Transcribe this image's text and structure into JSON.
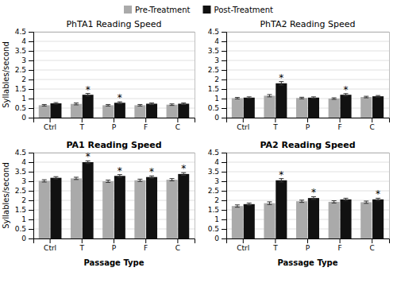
{
  "chart_data": [
    {
      "type": "bar",
      "title": "PhTA1 Reading Speed",
      "categories": [
        "Ctrl",
        "T",
        "P",
        "F",
        "C"
      ],
      "series": [
        {
          "name": "Pre-Treatment",
          "color": "#aaaaaa",
          "values": [
            0.65,
            0.72,
            0.65,
            0.65,
            0.68
          ],
          "errors": [
            0.04,
            0.05,
            0.04,
            0.04,
            0.04
          ]
        },
        {
          "name": "Post-Treatment",
          "color": "#111111",
          "values": [
            0.75,
            1.2,
            0.78,
            0.73,
            0.73
          ],
          "errors": [
            0.04,
            0.07,
            0.05,
            0.04,
            0.04
          ]
        }
      ],
      "annotations": [
        {
          "text": "*",
          "category": "T",
          "series": "Post-Treatment"
        },
        {
          "text": "*",
          "category": "P",
          "series": "Post-Treatment"
        }
      ],
      "ylabel": "Syllables/second",
      "ylim": [
        0,
        4.5
      ],
      "yticks": [
        0,
        0.5,
        1,
        1.5,
        2,
        2.5,
        3,
        3.5,
        4,
        4.5
      ],
      "grid": true,
      "legend": "top"
    },
    {
      "type": "bar",
      "title": "PhTA2 Reading Speed",
      "categories": [
        "Ctrl",
        "T",
        "P",
        "F",
        "C"
      ],
      "series": [
        {
          "name": "Pre-Treatment",
          "color": "#aaaaaa",
          "values": [
            1.02,
            1.15,
            1.03,
            1.0,
            1.08
          ],
          "errors": [
            0.04,
            0.06,
            0.04,
            0.04,
            0.04
          ]
        },
        {
          "name": "Post-Treatment",
          "color": "#111111",
          "values": [
            1.05,
            1.8,
            1.05,
            1.2,
            1.12
          ],
          "errors": [
            0.04,
            0.09,
            0.04,
            0.06,
            0.04
          ]
        }
      ],
      "annotations": [
        {
          "text": "*",
          "category": "T",
          "series": "Post-Treatment"
        },
        {
          "text": "*",
          "category": "F",
          "series": "Post-Treatment"
        }
      ],
      "ylim": [
        0,
        4.5
      ],
      "yticks": [
        0,
        0.5,
        1,
        1.5,
        2,
        2.5,
        3,
        3.5,
        4,
        4.5
      ],
      "grid": true
    },
    {
      "type": "bar",
      "title": "PA1 Reading Speed",
      "categories": [
        "Ctrl",
        "T",
        "P",
        "F",
        "C"
      ],
      "series": [
        {
          "name": "Pre-Treatment",
          "color": "#aaaaaa",
          "values": [
            3.02,
            3.15,
            3.0,
            3.05,
            3.08
          ],
          "errors": [
            0.06,
            0.06,
            0.06,
            0.06,
            0.06
          ]
        },
        {
          "name": "Post-Treatment",
          "color": "#111111",
          "values": [
            3.18,
            4.0,
            3.28,
            3.22,
            3.38
          ],
          "errors": [
            0.06,
            0.07,
            0.07,
            0.06,
            0.07
          ]
        }
      ],
      "annotations": [
        {
          "text": "*",
          "category": "T",
          "series": "Post-Treatment"
        },
        {
          "text": "*",
          "category": "P",
          "series": "Post-Treatment"
        },
        {
          "text": "*",
          "category": "F",
          "series": "Post-Treatment"
        },
        {
          "text": "*",
          "category": "C",
          "series": "Post-Treatment"
        }
      ],
      "xlabel": "Passage Type",
      "ylabel": "Syllables/second",
      "ylim": [
        0,
        4.5
      ],
      "yticks": [
        0,
        0.5,
        1,
        1.5,
        2,
        2.5,
        3,
        3.5,
        4,
        4.5
      ],
      "grid": true
    },
    {
      "type": "bar",
      "title": "PA2 Reading Speed",
      "categories": [
        "Ctrl",
        "T",
        "P",
        "F",
        "C"
      ],
      "series": [
        {
          "name": "Pre-Treatment",
          "color": "#aaaaaa",
          "values": [
            1.7,
            1.85,
            1.95,
            1.92,
            1.9
          ],
          "errors": [
            0.06,
            0.07,
            0.06,
            0.06,
            0.06
          ]
        },
        {
          "name": "Post-Treatment",
          "color": "#111111",
          "values": [
            1.8,
            3.05,
            2.12,
            2.05,
            2.05
          ],
          "errors": [
            0.06,
            0.09,
            0.07,
            0.06,
            0.06
          ]
        }
      ],
      "annotations": [
        {
          "text": "*",
          "category": "T",
          "series": "Post-Treatment"
        },
        {
          "text": "*",
          "category": "P",
          "series": "Post-Treatment"
        },
        {
          "text": "*",
          "category": "C",
          "series": "Post-Treatment"
        }
      ],
      "xlabel": "Passage Type",
      "ylim": [
        0,
        4.5
      ],
      "yticks": [
        0,
        0.5,
        1,
        1.5,
        2,
        2.5,
        3,
        3.5,
        4,
        4.5
      ],
      "grid": true
    }
  ]
}
